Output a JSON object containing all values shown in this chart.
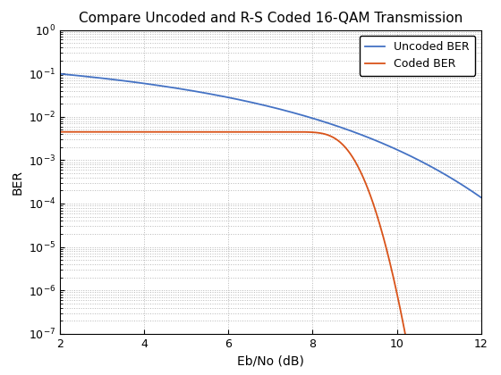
{
  "title": "Compare Uncoded and R-S Coded 16-QAM Transmission",
  "xlabel": "Eb/No (dB)",
  "ylabel": "BER",
  "xlim": [
    2,
    12
  ],
  "ylim_log": [
    -7,
    0
  ],
  "uncoded_color": "#4472C4",
  "coded_color": "#D95319",
  "uncoded_label": "Uncoded BER",
  "coded_label": "Coded BER",
  "linewidth": 1.3,
  "title_fontsize": 11,
  "axis_fontsize": 10,
  "tick_fontsize": 9,
  "legend_fontsize": 9,
  "grid_color": "#b0b0b0",
  "background_color": "#ffffff"
}
